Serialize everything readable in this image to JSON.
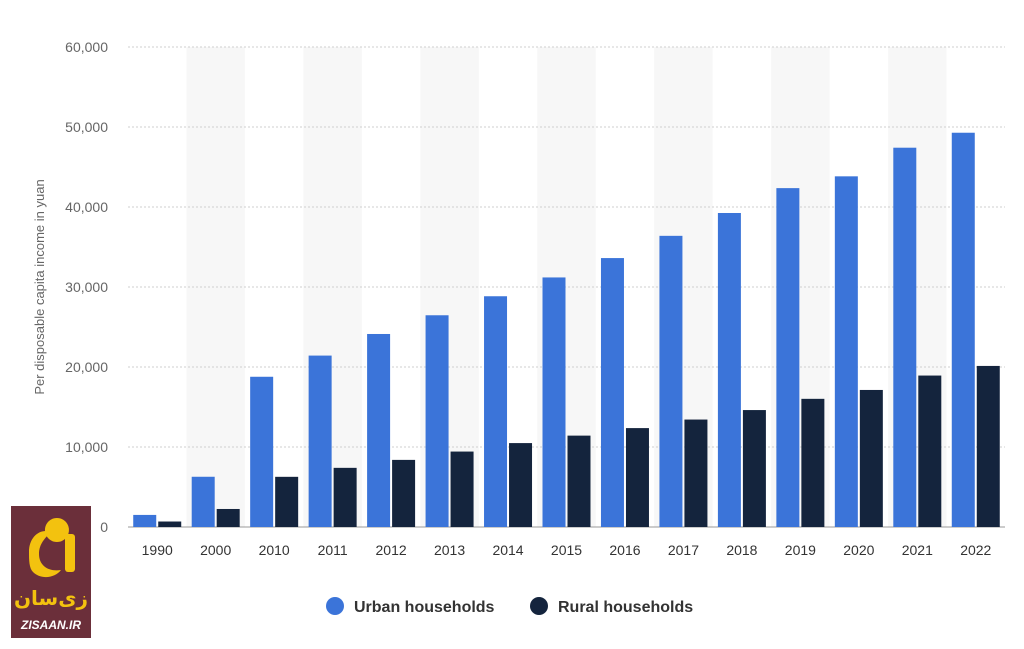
{
  "chart_data": {
    "type": "bar",
    "title": "",
    "xlabel": "",
    "ylabel": "Per disposable capita income in yuan",
    "ylim": [
      0,
      60000
    ],
    "yticks": [
      0,
      10000,
      20000,
      30000,
      40000,
      50000,
      60000
    ],
    "ytick_labels": [
      "0",
      "10,000",
      "20,000",
      "30,000",
      "40,000",
      "50,000",
      "60,000"
    ],
    "grid": true,
    "legend_position": "bottom-center",
    "categories": [
      "1990",
      "2000",
      "2010",
      "2011",
      "2012",
      "2013",
      "2014",
      "2015",
      "2016",
      "2017",
      "2018",
      "2019",
      "2020",
      "2021",
      "2022"
    ],
    "series": [
      {
        "name": "Urban households",
        "color": "#3b74d9",
        "values": [
          1510,
          6280,
          18779,
          21427,
          24127,
          26467,
          28844,
          31195,
          33616,
          36396,
          39251,
          42359,
          43834,
          47412,
          49283
        ]
      },
      {
        "name": "Rural households",
        "color": "#14243d",
        "values": [
          686,
          2253,
          6272,
          7394,
          8389,
          9430,
          10489,
          11422,
          12363,
          13432,
          14617,
          16021,
          17131,
          18931,
          20133
        ]
      }
    ]
  },
  "watermark": {
    "persian_text": "زی‌سان",
    "site_text": "ZISAAN.IR",
    "background_color": "#6b2f3a",
    "accent_color": "#f3c20f"
  }
}
